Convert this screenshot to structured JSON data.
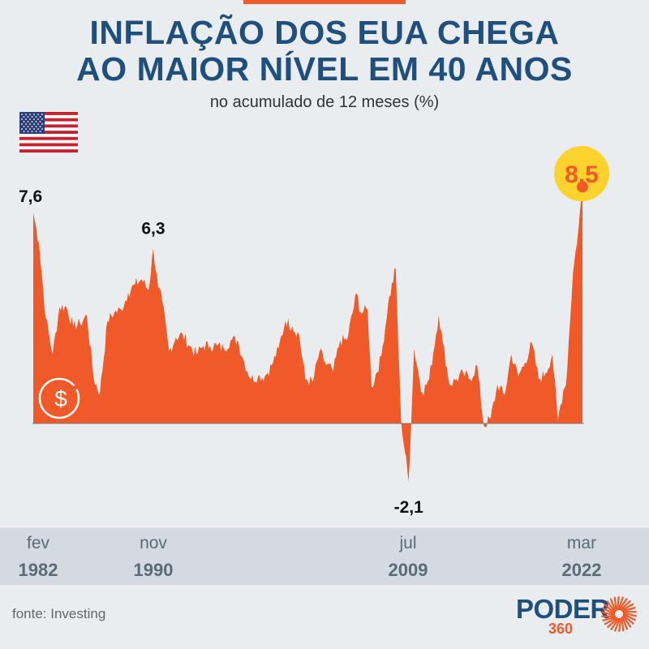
{
  "header": {
    "title_line1": "INFLAÇÃO DOS EUA CHEGA",
    "title_line2": "AO MAIOR NÍVEL EM 40 ANOS",
    "subtitle": "no acumulado de 12 meses (%)"
  },
  "x_labels": [
    {
      "month": "fev",
      "year": "1982"
    },
    {
      "month": "nov",
      "year": "1990"
    },
    {
      "month": "jul",
      "year": "2009"
    },
    {
      "month": "mar",
      "year": "2022"
    }
  ],
  "footer": {
    "source": "fonte: Investing",
    "logo_word": "PODER",
    "logo_number": "360"
  },
  "colors": {
    "accent": "#f05a28",
    "title": "#1e4f7d",
    "highlight": "#fcd22d",
    "background": "#e9edf0",
    "axis_band": "#d4dbe0"
  },
  "icons": [
    "us-flag-icon",
    "dollar-coin-icon",
    "poder360-sunburst-icon"
  ],
  "chart_data": {
    "type": "area",
    "title": "INFLAÇÃO DOS EUA CHEGA AO MAIOR NÍVEL EM 40 ANOS",
    "subtitle": "no acumulado de 12 meses (%)",
    "xlabel": "",
    "ylabel": "",
    "x_range": [
      "1982-02",
      "2022-03"
    ],
    "ylim": [
      -2.5,
      9
    ],
    "grid": false,
    "legend": "none",
    "series": [
      {
        "points": [
          [
            1982.08,
            7.6
          ],
          [
            1982.5,
            6.5
          ],
          [
            1983.0,
            3.8
          ],
          [
            1983.5,
            2.5
          ],
          [
            1984.0,
            4.2
          ],
          [
            1984.5,
            4.2
          ],
          [
            1985.0,
            3.5
          ],
          [
            1985.5,
            3.6
          ],
          [
            1986.0,
            3.9
          ],
          [
            1986.5,
            1.6
          ],
          [
            1986.95,
            1.1
          ],
          [
            1987.5,
            3.7
          ],
          [
            1988.0,
            4.0
          ],
          [
            1988.5,
            4.1
          ],
          [
            1989.0,
            4.7
          ],
          [
            1989.5,
            5.0
          ],
          [
            1990.0,
            5.2
          ],
          [
            1990.5,
            4.8
          ],
          [
            1990.85,
            6.3
          ],
          [
            1991.2,
            4.9
          ],
          [
            1991.5,
            4.4
          ],
          [
            1992.0,
            2.6
          ],
          [
            1992.5,
            3.1
          ],
          [
            1993.0,
            3.2
          ],
          [
            1993.5,
            2.8
          ],
          [
            1994.0,
            2.5
          ],
          [
            1994.5,
            2.8
          ],
          [
            1995.0,
            2.8
          ],
          [
            1995.5,
            2.8
          ],
          [
            1996.0,
            2.7
          ],
          [
            1996.5,
            3.0
          ],
          [
            1997.0,
            3.0
          ],
          [
            1997.5,
            2.2
          ],
          [
            1998.0,
            1.6
          ],
          [
            1998.5,
            1.7
          ],
          [
            1999.0,
            1.7
          ],
          [
            1999.5,
            2.1
          ],
          [
            2000.0,
            2.7
          ],
          [
            2000.5,
            3.7
          ],
          [
            2001.0,
            3.5
          ],
          [
            2001.5,
            3.2
          ],
          [
            2001.95,
            1.6
          ],
          [
            2002.5,
            1.5
          ],
          [
            2003.0,
            2.6
          ],
          [
            2003.5,
            2.1
          ],
          [
            2004.0,
            1.9
          ],
          [
            2004.5,
            3.0
          ],
          [
            2005.0,
            3.0
          ],
          [
            2005.7,
            4.7
          ],
          [
            2006.0,
            4.0
          ],
          [
            2006.5,
            4.1
          ],
          [
            2006.8,
            1.3
          ],
          [
            2007.5,
            2.4
          ],
          [
            2008.0,
            4.3
          ],
          [
            2008.55,
            5.6
          ],
          [
            2008.95,
            0.1
          ],
          [
            2009.5,
            -2.1
          ],
          [
            2009.9,
            2.7
          ],
          [
            2010.5,
            1.1
          ],
          [
            2011.0,
            1.6
          ],
          [
            2011.7,
            3.9
          ],
          [
            2012.0,
            2.9
          ],
          [
            2012.5,
            1.4
          ],
          [
            2013.0,
            1.6
          ],
          [
            2013.5,
            1.8
          ],
          [
            2014.0,
            1.6
          ],
          [
            2014.5,
            2.1
          ],
          [
            2015.0,
            -0.1
          ],
          [
            2015.5,
            0.2
          ],
          [
            2016.0,
            1.4
          ],
          [
            2016.5,
            1.0
          ],
          [
            2017.0,
            2.5
          ],
          [
            2017.5,
            1.7
          ],
          [
            2018.0,
            2.2
          ],
          [
            2018.5,
            2.9
          ],
          [
            2019.0,
            1.6
          ],
          [
            2019.5,
            1.8
          ],
          [
            2020.0,
            2.5
          ],
          [
            2020.4,
            0.1
          ],
          [
            2020.8,
            1.2
          ],
          [
            2021.0,
            1.4
          ],
          [
            2021.5,
            5.4
          ],
          [
            2021.9,
            7.0
          ],
          [
            2022.2,
            8.5
          ]
        ]
      }
    ],
    "annotations": [
      {
        "x": 1982.08,
        "y": 7.6,
        "label": "7,6"
      },
      {
        "x": 1990.85,
        "y": 6.3,
        "label": "6,3"
      },
      {
        "x": 2009.5,
        "y": -2.1,
        "label": "-2,1"
      },
      {
        "x": 2022.2,
        "y": 8.5,
        "label": "8,5",
        "highlight": true
      }
    ]
  }
}
